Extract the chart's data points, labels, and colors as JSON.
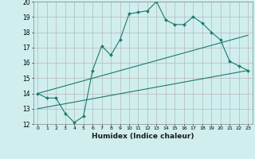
{
  "xlabel": "Humidex (Indice chaleur)",
  "bg_color": "#d0eeee",
  "grid_color": "#b8b8b8",
  "line_color": "#1a7a6a",
  "xlim": [
    -0.5,
    23.5
  ],
  "ylim": [
    12,
    20
  ],
  "xticks": [
    0,
    1,
    2,
    3,
    4,
    5,
    6,
    7,
    8,
    9,
    10,
    11,
    12,
    13,
    14,
    15,
    16,
    17,
    18,
    19,
    20,
    21,
    22,
    23
  ],
  "yticks": [
    12,
    13,
    14,
    15,
    16,
    17,
    18,
    19,
    20
  ],
  "series1_x": [
    0,
    1,
    2,
    3,
    4,
    5,
    6,
    7,
    8,
    9,
    10,
    11,
    12,
    13,
    14,
    15,
    16,
    17,
    18,
    19,
    20,
    21,
    22,
    23
  ],
  "series1_y": [
    14.0,
    13.7,
    13.7,
    12.7,
    12.1,
    12.5,
    15.5,
    17.1,
    16.5,
    17.5,
    19.2,
    19.3,
    19.4,
    20.0,
    18.8,
    18.5,
    18.5,
    19.0,
    18.6,
    18.0,
    17.5,
    16.1,
    15.8,
    15.5
  ],
  "series2_x": [
    0,
    23
  ],
  "series2_y": [
    14.0,
    17.8
  ],
  "series3_x": [
    0,
    23
  ],
  "series3_y": [
    13.0,
    15.5
  ]
}
